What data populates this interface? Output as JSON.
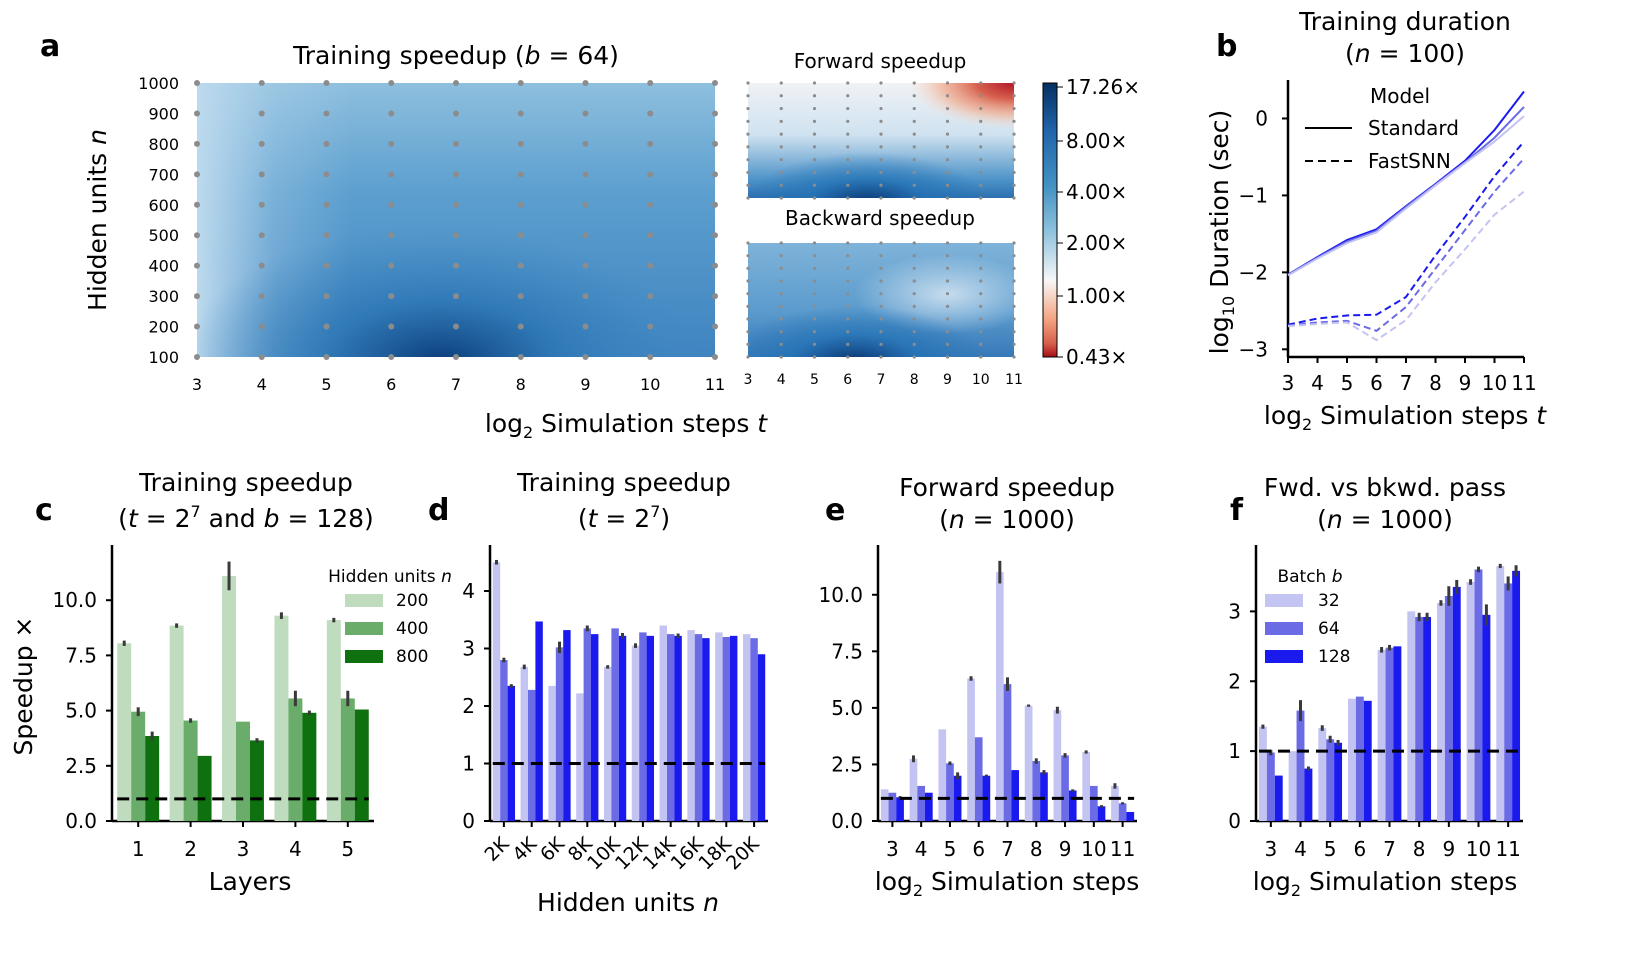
{
  "figure": {
    "panel_letters": [
      "a",
      "b",
      "c",
      "d",
      "e",
      "f"
    ]
  },
  "panel_a": {
    "main_title": "Training speedup (b = 64)",
    "forward_title": "Forward speedup",
    "backward_title": "Backward speedup",
    "ylabel": "Hidden units n",
    "xlabel": "log2 Simulation steps t",
    "y_ticks": [
      "1000",
      "900",
      "800",
      "700",
      "600",
      "500",
      "400",
      "300",
      "200",
      "100"
    ],
    "x_ticks": [
      "3",
      "4",
      "5",
      "6",
      "7",
      "8",
      "9",
      "10",
      "11"
    ],
    "colorbar_ticks": [
      "17.26×",
      "8.00×",
      "4.00×",
      "2.00×",
      "1.00×",
      "0.43×"
    ],
    "colors": {
      "high": "#08306b",
      "mid": "#f7f7f7",
      "low": "#a50f15",
      "grid_dot": "#8c8c8c"
    }
  },
  "chart_data": [
    {
      "panel": "b",
      "type": "line",
      "title": "Training duration (n = 100)",
      "xlabel": "log2 Simulation steps t",
      "ylabel": "log10 Duration (sec)",
      "x": [
        3,
        4,
        5,
        6,
        7,
        8,
        9,
        10,
        11
      ],
      "x_ticks": [
        "3",
        "4",
        "5",
        "6",
        "7",
        "8",
        "9",
        "10",
        "11"
      ],
      "y_ticks": [
        "0",
        "−1",
        "−2",
        "−3"
      ],
      "ylim": [
        -3.1,
        0.5
      ],
      "legend": {
        "title": "Model",
        "entries": [
          "Standard",
          "FastSNN"
        ],
        "placement": "top-left"
      },
      "series": [
        {
          "model": "Standard",
          "batch": 128,
          "values": [
            -2.03,
            -1.8,
            -1.58,
            -1.44,
            -1.14,
            -0.85,
            -0.55,
            -0.15,
            0.35
          ]
        },
        {
          "model": "Standard",
          "batch": 64,
          "values": [
            -2.03,
            -1.81,
            -1.6,
            -1.46,
            -1.15,
            -0.86,
            -0.57,
            -0.25,
            0.15
          ]
        },
        {
          "model": "Standard",
          "batch": 32,
          "values": [
            -2.04,
            -1.82,
            -1.62,
            -1.48,
            -1.17,
            -0.87,
            -0.58,
            -0.3,
            0.03
          ]
        },
        {
          "model": "FastSNN",
          "batch": 128,
          "values": [
            -2.68,
            -2.6,
            -2.56,
            -2.55,
            -2.32,
            -1.78,
            -1.28,
            -0.75,
            -0.3
          ]
        },
        {
          "model": "FastSNN",
          "batch": 64,
          "values": [
            -2.69,
            -2.65,
            -2.63,
            -2.76,
            -2.45,
            -1.95,
            -1.45,
            -0.95,
            -0.52
          ]
        },
        {
          "model": "FastSNN",
          "batch": 32,
          "values": [
            -2.7,
            -2.67,
            -2.65,
            -2.88,
            -2.62,
            -2.13,
            -1.7,
            -1.25,
            -0.95
          ]
        }
      ],
      "colors": [
        "#1a1aee",
        "#6b6be6",
        "#c4c4f2"
      ]
    },
    {
      "panel": "c",
      "type": "bar",
      "title": "Training speedup (t = 2^7 and b = 128)",
      "xlabel": "Layers",
      "ylabel": "Speedup ×",
      "categories": [
        "1",
        "2",
        "3",
        "4",
        "5"
      ],
      "ylim": [
        0,
        12.5
      ],
      "y_ticks": [
        "0.0",
        "2.5",
        "5.0",
        "7.5",
        "10.0"
      ],
      "y_tick_values": [
        0,
        2.5,
        5.0,
        7.5,
        10.0
      ],
      "legend": {
        "title": "Hidden units n",
        "placement": "top-right"
      },
      "series": [
        {
          "name": "200",
          "values": [
            8.05,
            8.85,
            11.1,
            9.3,
            9.1
          ],
          "err": [
            0.12,
            0.1,
            0.65,
            0.15,
            0.1
          ]
        },
        {
          "name": "400",
          "values": [
            4.95,
            4.55,
            4.5,
            5.55,
            5.55
          ],
          "err": [
            0.2,
            0.1,
            0.0,
            0.35,
            0.35
          ]
        },
        {
          "name": "800",
          "values": [
            3.85,
            2.95,
            3.65,
            4.9,
            5.05
          ],
          "err": [
            0.2,
            0.0,
            0.1,
            0.1,
            0.0
          ]
        }
      ],
      "baseline": 1,
      "colors": [
        "#bfdcbf",
        "#6aac6a",
        "#0e700e"
      ]
    },
    {
      "panel": "d",
      "type": "bar",
      "title": "Training speedup (t = 2^7)",
      "xlabel": "Hidden units n",
      "ylabel": "",
      "categories": [
        "2K",
        "4K",
        "6K",
        "8K",
        "10K",
        "12K",
        "14K",
        "16K",
        "18K",
        "20K"
      ],
      "ylim": [
        0,
        4.8
      ],
      "y_ticks": [
        "0",
        "1",
        "2",
        "3",
        "4"
      ],
      "y_tick_values": [
        0,
        1,
        2,
        3,
        4
      ],
      "series": [
        {
          "values": [
            4.5,
            2.68,
            2.35,
            2.22,
            2.68,
            3.05,
            3.4,
            3.32,
            3.28,
            3.25
          ],
          "err": [
            0.04,
            0.04,
            0.0,
            0.0,
            0.03,
            0.04,
            0.0,
            0.0,
            0.0,
            0.0
          ]
        },
        {
          "values": [
            2.8,
            2.28,
            3.02,
            3.35,
            3.35,
            3.28,
            3.25,
            3.25,
            3.2,
            3.18
          ],
          "err": [
            0.04,
            0.0,
            0.1,
            0.05,
            0.0,
            0.0,
            0.0,
            0.0,
            0.0,
            0.0
          ]
        },
        {
          "values": [
            2.35,
            3.47,
            3.32,
            3.25,
            3.22,
            3.22,
            3.22,
            3.18,
            3.22,
            2.9
          ],
          "err": [
            0.03,
            0.0,
            0.0,
            0.0,
            0.05,
            0.0,
            0.04,
            0.0,
            0.0,
            0.0
          ]
        }
      ],
      "baseline": 1,
      "colors": [
        "#c4c4f2",
        "#6b6be6",
        "#1a1aee"
      ]
    },
    {
      "panel": "e",
      "type": "bar",
      "title": "Forward speedup (n = 1000)",
      "xlabel": "log2 Simulation steps",
      "ylabel": "",
      "categories": [
        "3",
        "4",
        "5",
        "6",
        "7",
        "8",
        "9",
        "10",
        "11"
      ],
      "ylim": [
        0,
        12.2
      ],
      "y_ticks": [
        "0.0",
        "2.5",
        "5.0",
        "7.5",
        "10.0"
      ],
      "y_tick_values": [
        0,
        2.5,
        5.0,
        7.5,
        10.0
      ],
      "series": [
        {
          "values": [
            1.4,
            2.75,
            4.05,
            6.3,
            11.0,
            5.1,
            4.9,
            3.05,
            1.55
          ],
          "err": [
            0.0,
            0.15,
            0.0,
            0.1,
            0.5,
            0.05,
            0.15,
            0.07,
            0.12
          ]
        },
        {
          "values": [
            1.25,
            1.55,
            2.55,
            3.7,
            6.05,
            2.65,
            2.9,
            1.55,
            0.78
          ],
          "err": [
            0.0,
            0.0,
            0.08,
            0.0,
            0.3,
            0.12,
            0.1,
            0.0,
            0.05
          ]
        },
        {
          "values": [
            1.05,
            1.25,
            2.0,
            2.0,
            2.25,
            2.15,
            1.35,
            0.65,
            0.4
          ],
          "err": [
            0.05,
            0.0,
            0.15,
            0.05,
            0.0,
            0.1,
            0.05,
            0.05,
            0.0
          ]
        }
      ],
      "baseline": 1,
      "colors": [
        "#c4c4f2",
        "#6b6be6",
        "#1a1aee"
      ]
    },
    {
      "panel": "f",
      "type": "bar",
      "title": "Fwd. vs bkwd. pass (n = 1000)",
      "xlabel": "log2 Simulation steps",
      "ylabel": "",
      "categories": [
        "3",
        "4",
        "5",
        "6",
        "7",
        "8",
        "9",
        "10",
        "11"
      ],
      "ylim": [
        0,
        3.95
      ],
      "y_ticks": [
        "0",
        "1",
        "2",
        "3"
      ],
      "y_tick_values": [
        0,
        1,
        2,
        3
      ],
      "legend": {
        "title": "Batch b",
        "placement": "top-left"
      },
      "series": [
        {
          "name": "32",
          "values": [
            1.35,
            1.0,
            1.33,
            1.75,
            2.45,
            3.0,
            3.12,
            3.42,
            3.65
          ],
          "err": [
            0.03,
            0.0,
            0.04,
            0.0,
            0.04,
            0.0,
            0.04,
            0.04,
            0.03
          ]
        },
        {
          "name": "64",
          "values": [
            0.98,
            1.58,
            1.17,
            1.78,
            2.48,
            2.92,
            3.22,
            3.6,
            3.4
          ],
          "err": [
            0.04,
            0.15,
            0.05,
            0.0,
            0.04,
            0.06,
            0.14,
            0.04,
            0.1
          ]
        },
        {
          "name": "128",
          "values": [
            0.65,
            0.75,
            1.12,
            1.72,
            2.5,
            2.92,
            3.35,
            2.95,
            3.58
          ],
          "err": [
            0.0,
            0.03,
            0.04,
            0.0,
            0.0,
            0.06,
            0.1,
            0.15,
            0.08
          ]
        }
      ],
      "baseline": 1,
      "colors": [
        "#c4c4f2",
        "#6b6be6",
        "#1a1aee"
      ]
    }
  ]
}
